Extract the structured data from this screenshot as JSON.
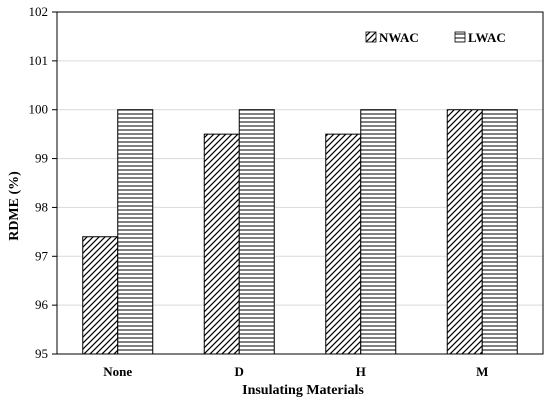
{
  "chart_data": {
    "type": "bar",
    "categories": [
      "None",
      "D",
      "H",
      "M"
    ],
    "series": [
      {
        "name": "NWAC",
        "values": [
          97.4,
          99.5,
          99.5,
          100
        ],
        "pattern": "diagonal"
      },
      {
        "name": "LWAC",
        "values": [
          100,
          100,
          100,
          100
        ],
        "pattern": "horizontal"
      }
    ],
    "xlabel": "Insulating Materials",
    "ylabel": "RDME (%)",
    "ylim": [
      95,
      102
    ],
    "yticks": [
      95,
      96,
      97,
      98,
      99,
      100,
      101,
      102
    ],
    "grid": "horizontal",
    "legend": "top-right",
    "colors": {
      "bar_stroke": "#000000",
      "grid": "#d9d9d9",
      "background": "#ffffff"
    }
  }
}
